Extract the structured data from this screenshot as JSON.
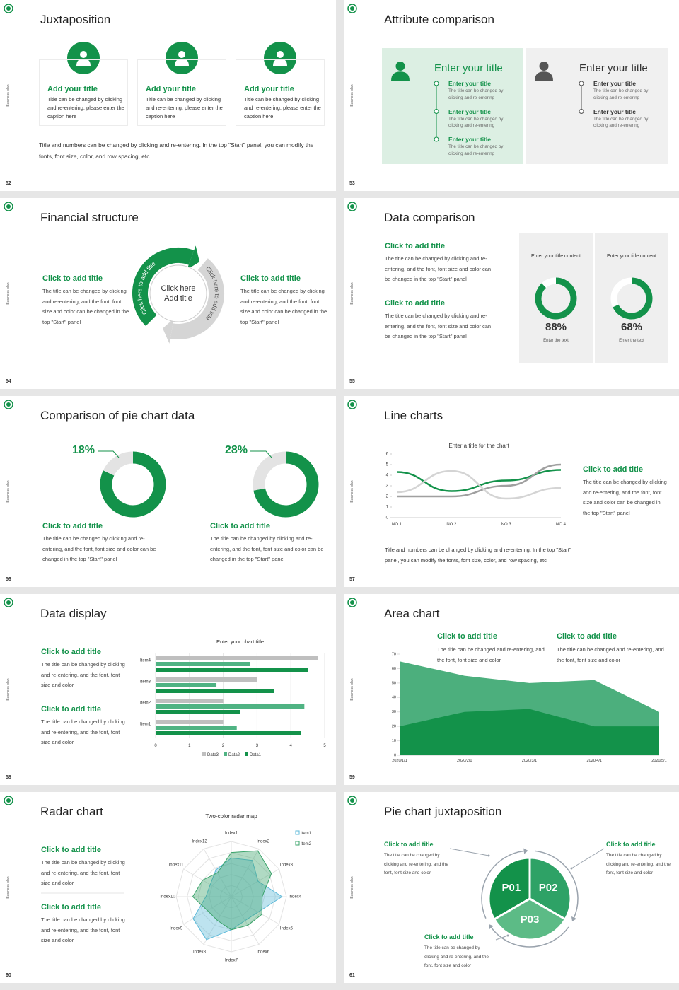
{
  "side_label": "Business plan",
  "slides": [
    {
      "number": "52",
      "title": "Juxtaposition",
      "cards": [
        {
          "title": "Add your title",
          "text": "Title can be changed by clicking and re-entering, please enter the caption here"
        },
        {
          "title": "Add your title",
          "text": "Title can be changed by clicking and re-entering, please enter the caption here"
        },
        {
          "title": "Add your title",
          "text": "Title can be changed by clicking and re-entering, please enter the caption here"
        }
      ],
      "note": "Title and numbers can be changed by clicking and re-entering. In the top \"Start\" panel, you can modify the fonts, font size, color, and row spacing, etc"
    },
    {
      "number": "53",
      "title": "Attribute comparison",
      "panels": [
        {
          "title": "Enter your title",
          "items": [
            {
              "title": "Enter your title",
              "text": "The title can be changed by clicking and re-entering"
            },
            {
              "title": "Enter your title",
              "text": "The title can be changed by clicking and re-entering"
            },
            {
              "title": "Enter your title",
              "text": "The title can be changed by clicking and re-entering"
            }
          ]
        },
        {
          "title": "Enter your title",
          "items": [
            {
              "title": "Enter your title",
              "text": "The title can be changed by clicking and re-entering"
            },
            {
              "title": "Enter your title",
              "text": "The title can be changed by clicking and re-entering"
            }
          ]
        }
      ]
    },
    {
      "number": "54",
      "title": "Financial structure",
      "blocks": [
        {
          "title": "Click to add title",
          "text": "The title can be changed by clicking and re-entering, and the font, font size and color can be changed in the top \"Start\" panel"
        },
        {
          "title": "Click to add title",
          "text": "The title can be changed by clicking and re-entering, and the font, font size and color can be changed in the top \"Start\" panel"
        }
      ],
      "center": [
        "Click here",
        "Add title"
      ],
      "arc_labels": [
        "Click here to add title",
        "Click here to add title"
      ]
    },
    {
      "number": "55",
      "title": "Data comparison",
      "blocks": [
        {
          "title": "Click to add title",
          "text": "The title can be changed by clicking and re-entering, and the font, font size and color can be changed in the top \"Start\" panel"
        },
        {
          "title": "Click to add title",
          "text": "The title can be changed by clicking and re-entering, and the font, font size and color can be changed in the top \"Start\" panel"
        }
      ],
      "chart": {
        "type": "donut",
        "range": [
          0,
          100
        ],
        "color": "#13924a",
        "track": "#ffffff",
        "panels": [
          {
            "heading": "Enter your title content",
            "value": 88,
            "value_label": "88%",
            "caption": "Enter the text"
          },
          {
            "heading": "Enter your title content",
            "value": 68,
            "value_label": "68%",
            "caption": "Enter the text"
          }
        ]
      }
    },
    {
      "number": "56",
      "title": "Comparison of pie chart data",
      "blocks": [
        {
          "title": "Click to add title",
          "text": "The title can be changed by clicking and re-entering, and the font, font size and color can be changed in the top \"Start\" panel"
        },
        {
          "title": "Click to add title",
          "text": "The title can be changed by clicking and re-entering, and the font, font size and color can be changed in the top \"Start\" panel"
        }
      ],
      "chart": {
        "type": "donut",
        "range": [
          0,
          100
        ],
        "color": "#13924a",
        "track": "#e3e3e3",
        "panels": [
          {
            "value": 18,
            "value_label": "18%"
          },
          {
            "value": 28,
            "value_label": "28%"
          }
        ]
      }
    },
    {
      "number": "57",
      "title": "Line charts",
      "blocks": [
        {
          "title": "Click to add title",
          "text": "The title can be changed by clicking and re-entering, and the font, font size and color can be changed in the top \"Start\" panel"
        }
      ],
      "note": "Title and numbers can be changed by clicking and re-entering. In the top \"Start\" panel, you can modify the fonts, font size, color, and row spacing, etc",
      "chart": {
        "type": "line",
        "title": "Enter a title for the chart",
        "categories": [
          "NO.1",
          "NO.2",
          "NO.3",
          "NO.4"
        ],
        "ylim": [
          0,
          6
        ],
        "yticks": [
          0,
          1,
          2,
          3,
          4,
          5,
          6
        ],
        "series": [
          {
            "color": "#13924a",
            "values": [
              4.3,
              2.5,
              3.5,
              4.5
            ]
          },
          {
            "color": "#a0a0a0",
            "values": [
              2,
              2,
              3,
              5
            ]
          },
          {
            "color": "#d4d4d4",
            "values": [
              2.4,
              4.4,
              1.8,
              2.8
            ]
          }
        ]
      }
    },
    {
      "number": "58",
      "title": "Data display",
      "blocks": [
        {
          "title": "Click to add title",
          "text": "The title can be changed by clicking and re-entering, and the font, font size and color"
        },
        {
          "title": "Click to add title",
          "text": "The title can be changed by clicking and re-entering, and the font, font size and color"
        }
      ],
      "chart": {
        "type": "bar",
        "orientation": "horizontal",
        "title": "Enter your chart title",
        "categories": [
          "Item1",
          "Item2",
          "Item3",
          "Item4"
        ],
        "xlim": [
          0,
          5
        ],
        "xticks": [
          0,
          1,
          2,
          3,
          4,
          5
        ],
        "grid": true,
        "series": [
          {
            "name": "Data3",
            "color": "#bfbfbf",
            "values": [
              2,
              2,
              3,
              4.8
            ]
          },
          {
            "name": "Data2",
            "color": "#4fb383",
            "values": [
              2.4,
              4.4,
              1.8,
              2.8
            ]
          },
          {
            "name": "Data1",
            "color": "#13924a",
            "values": [
              4.3,
              2.5,
              3.5,
              4.5
            ]
          }
        ]
      }
    },
    {
      "number": "59",
      "title": "Area chart",
      "blocks": [
        {
          "title": "Click to add title",
          "text": "The title can be changed and re-entering, and the font, font size and color"
        },
        {
          "title": "Click to add title",
          "text": "The title can be changed and re-entering, and the font, font size and color"
        }
      ],
      "chart": {
        "type": "area",
        "categories": [
          "2020/1/1",
          "2020/2/1",
          "2020/3/1",
          "2020/4/1",
          "2020/5/1"
        ],
        "ylim": [
          0,
          70
        ],
        "yticks": [
          0,
          10,
          20,
          30,
          40,
          50,
          60,
          70
        ],
        "series": [
          {
            "color": "#4caf7d",
            "values": [
              65,
              55,
              50,
              52,
              30
            ]
          },
          {
            "color": "#13924a",
            "values": [
              20,
              30,
              32,
              20,
              20
            ]
          }
        ]
      }
    },
    {
      "number": "60",
      "title": "Radar chart",
      "blocks": [
        {
          "title": "Click to add title",
          "text": "The title can be changed by clicking and re-entering, and the font, font size and color"
        },
        {
          "title": "Click to add title",
          "text": "The title can be changed by clicking and re-entering, and the font, font size and color"
        }
      ],
      "chart": {
        "type": "radar",
        "title": "Two-color radar map",
        "categories": [
          "Index1",
          "Index2",
          "Index3",
          "Index4",
          "Index5",
          "Index6",
          "Index7",
          "Index8",
          "Index9",
          "Index10",
          "Index11",
          "Index12"
        ],
        "rlim": [
          0,
          5
        ],
        "series": [
          {
            "name": "Item1",
            "color": "#5bb8d8",
            "values": [
              3.5,
              3.8,
              2.8,
              4.6,
              2.8,
              2.5,
              3,
              4.5,
              4,
              2.3,
              2.2,
              2.8
            ]
          },
          {
            "name": "Item2",
            "color": "#3aa36a",
            "values": [
              4,
              4.8,
              4.2,
              2.8,
              3.2,
              3,
              3,
              2.5,
              2.5,
              3.5,
              3,
              2.5
            ]
          }
        ]
      }
    },
    {
      "number": "61",
      "title": "Pie chart juxtaposition",
      "blocks": [
        {
          "title": "Click to add title",
          "text": "The title can be changed by clicking and re-entering, and the font, font size and color"
        },
        {
          "title": "Click to add title",
          "text": "The title can be changed by clicking and re-entering, and the font, font size and color"
        },
        {
          "title": "Click to add title",
          "text": "The title can be changed by clicking and re-entering, and the font, font size and color"
        }
      ],
      "chart": {
        "type": "pie",
        "labels": [
          "P01",
          "P02",
          "P03"
        ],
        "colors": [
          "#13924a",
          "#2ea266",
          "#5cbb86"
        ]
      }
    }
  ]
}
